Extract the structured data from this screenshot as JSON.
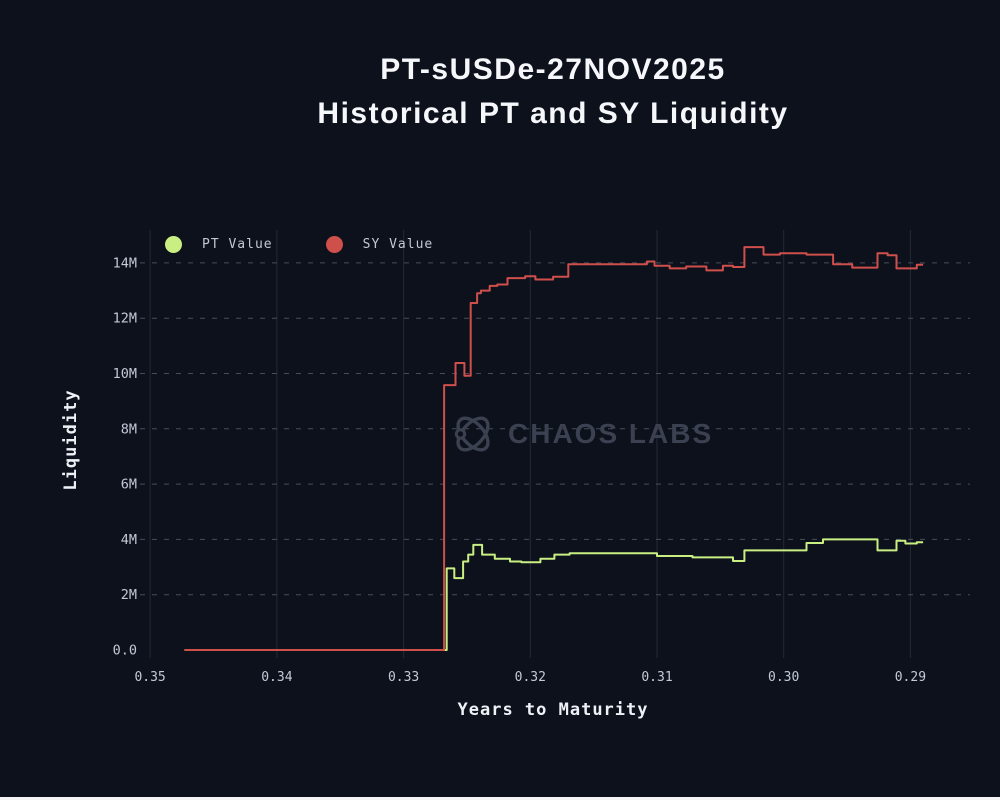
{
  "page": {
    "background_color": "#0d111c",
    "bottom_bar_color": "#f5f5f5"
  },
  "title": {
    "line1": "PT-sUSDe-27NOV2025",
    "line2": "Historical PT and SY Liquidity"
  },
  "watermark": {
    "text": "CHAOS LABS",
    "logo_icon": "orbit-atom-icon",
    "color": "#3b4150"
  },
  "legend": [
    {
      "label": "PT Value",
      "color": "#c9ef82"
    },
    {
      "label": "SY Value",
      "color": "#cf4f4b"
    }
  ],
  "axes": {
    "x_label": "Years to Maturity",
    "y_label": "Liquidity"
  },
  "colors": {
    "vertical_gridline": "#232936",
    "horizontal_gridline": "#474d59",
    "tick_label": "#c3c9d6",
    "title_text": "#f5f7fa"
  },
  "chart_data": {
    "type": "line",
    "title": "PT-sUSDe-27NOV2025 Historical PT and SY Liquidity",
    "xlabel": "Years to Maturity",
    "ylabel": "Liquidity",
    "x_axis_reversed": true,
    "grid": {
      "vertical": "solid",
      "horizontal": "dashed"
    },
    "legend_position": "top-left-inside",
    "y_unit": "M",
    "xlim": [
      0.3508,
      0.2853
    ],
    "ylim": [
      -0.29,
      15.19
    ],
    "x_ticks": [
      {
        "value": 0.35,
        "label": "0.35"
      },
      {
        "value": 0.34,
        "label": "0.34"
      },
      {
        "value": 0.33,
        "label": "0.33"
      },
      {
        "value": 0.32,
        "label": "0.32"
      },
      {
        "value": 0.31,
        "label": "0.31"
      },
      {
        "value": 0.3,
        "label": "0.30"
      },
      {
        "value": 0.29,
        "label": "0.29"
      }
    ],
    "y_ticks": [
      {
        "value": 0,
        "label": "0.0"
      },
      {
        "value": 2,
        "label": "2M"
      },
      {
        "value": 4,
        "label": "4M"
      },
      {
        "value": 6,
        "label": "6M"
      },
      {
        "value": 8,
        "label": "8M"
      },
      {
        "value": 10,
        "label": "10M"
      },
      {
        "value": 12,
        "label": "12M"
      },
      {
        "value": 14,
        "label": "14M"
      }
    ],
    "series": [
      {
        "name": "PT Value",
        "color": "#c9ef82",
        "step": true,
        "segments": [
          [
            0.3473,
            0.3266,
            0
          ],
          [
            0.3266,
            0.326,
            2.95
          ],
          [
            0.326,
            0.3253,
            2.6
          ],
          [
            0.3253,
            0.3249,
            3.2
          ],
          [
            0.3249,
            0.3245,
            3.45
          ],
          [
            0.3245,
            0.3238,
            3.8
          ],
          [
            0.3238,
            0.3228,
            3.45
          ],
          [
            0.3228,
            0.3216,
            3.3
          ],
          [
            0.3216,
            0.3207,
            3.2
          ],
          [
            0.3207,
            0.3192,
            3.17
          ],
          [
            0.3192,
            0.3181,
            3.3
          ],
          [
            0.3181,
            0.3169,
            3.45
          ],
          [
            0.3169,
            0.31,
            3.5
          ],
          [
            0.31,
            0.3072,
            3.4
          ],
          [
            0.3072,
            0.304,
            3.35
          ],
          [
            0.304,
            0.3031,
            3.22
          ],
          [
            0.3031,
            0.2982,
            3.6
          ],
          [
            0.2982,
            0.2969,
            3.87
          ],
          [
            0.2969,
            0.2926,
            4.0
          ],
          [
            0.2926,
            0.2911,
            3.6
          ],
          [
            0.2911,
            0.2904,
            3.95
          ],
          [
            0.2904,
            0.2895,
            3.85
          ],
          [
            0.2895,
            0.289,
            3.9
          ]
        ]
      },
      {
        "name": "SY Value",
        "color": "#cf4f4b",
        "step": true,
        "segments": [
          [
            0.3473,
            0.3268,
            0
          ],
          [
            0.3268,
            0.3259,
            9.58
          ],
          [
            0.3259,
            0.3252,
            10.38
          ],
          [
            0.3252,
            0.3247,
            9.92
          ],
          [
            0.3247,
            0.3242,
            12.55
          ],
          [
            0.3242,
            0.3239,
            12.9
          ],
          [
            0.3239,
            0.3232,
            13.0
          ],
          [
            0.3232,
            0.3226,
            13.17
          ],
          [
            0.3226,
            0.3218,
            13.22
          ],
          [
            0.3218,
            0.3204,
            13.45
          ],
          [
            0.3204,
            0.3196,
            13.52
          ],
          [
            0.3196,
            0.3182,
            13.4
          ],
          [
            0.3182,
            0.317,
            13.5
          ],
          [
            0.317,
            0.3108,
            13.95
          ],
          [
            0.3108,
            0.3102,
            14.05
          ],
          [
            0.3102,
            0.309,
            13.9
          ],
          [
            0.309,
            0.3077,
            13.8
          ],
          [
            0.3077,
            0.3061,
            13.87
          ],
          [
            0.3061,
            0.3048,
            13.73
          ],
          [
            0.3048,
            0.304,
            13.9
          ],
          [
            0.304,
            0.3031,
            13.85
          ],
          [
            0.3031,
            0.3016,
            14.57
          ],
          [
            0.3016,
            0.3003,
            14.3
          ],
          [
            0.3003,
            0.2982,
            14.35
          ],
          [
            0.2982,
            0.2961,
            14.3
          ],
          [
            0.2961,
            0.2946,
            13.95
          ],
          [
            0.2946,
            0.2926,
            13.83
          ],
          [
            0.2926,
            0.2918,
            14.35
          ],
          [
            0.2918,
            0.2911,
            14.28
          ],
          [
            0.2911,
            0.2895,
            13.8
          ],
          [
            0.2895,
            0.289,
            13.93
          ]
        ]
      }
    ]
  }
}
